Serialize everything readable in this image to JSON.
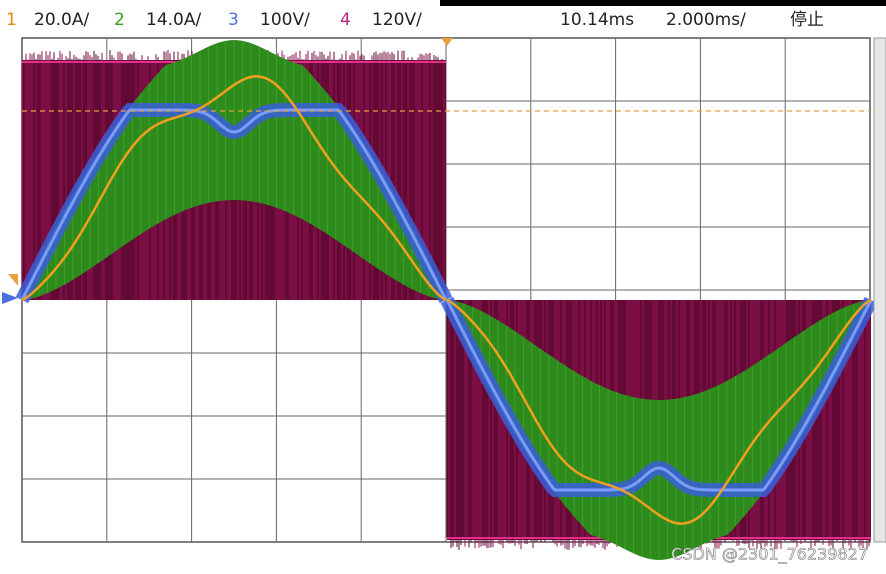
{
  "header": {
    "channels": [
      {
        "number": "1",
        "scale": "20.0A/"
      },
      {
        "number": "2",
        "scale": "14.0A/"
      },
      {
        "number": "3",
        "scale": "100V/"
      },
      {
        "number": "4",
        "scale": "120V/"
      }
    ],
    "time_position": "10.14ms",
    "time_scale": "2.000ms/",
    "status": "停止"
  },
  "watermark": "CSDN @2301_76239827"
}
